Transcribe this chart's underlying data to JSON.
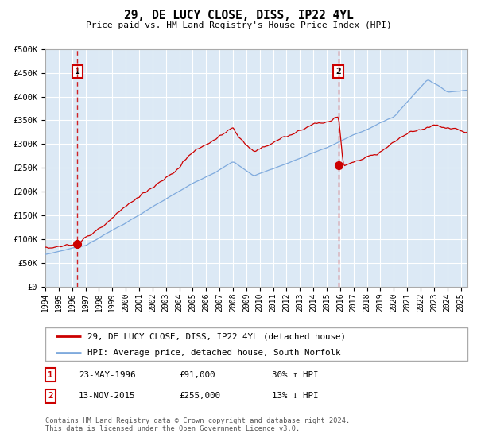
{
  "title": "29, DE LUCY CLOSE, DISS, IP22 4YL",
  "subtitle": "Price paid vs. HM Land Registry's House Price Index (HPI)",
  "ylim": [
    0,
    500000
  ],
  "xlim_start": 1994.0,
  "xlim_end": 2025.5,
  "yticks": [
    0,
    50000,
    100000,
    150000,
    200000,
    250000,
    300000,
    350000,
    400000,
    450000,
    500000
  ],
  "ytick_labels": [
    "£0",
    "£50K",
    "£100K",
    "£150K",
    "£200K",
    "£250K",
    "£300K",
    "£350K",
    "£400K",
    "£450K",
    "£500K"
  ],
  "xtick_years": [
    1994,
    1995,
    1996,
    1997,
    1998,
    1999,
    2000,
    2001,
    2002,
    2003,
    2004,
    2005,
    2006,
    2007,
    2008,
    2009,
    2010,
    2011,
    2012,
    2013,
    2014,
    2015,
    2016,
    2017,
    2018,
    2019,
    2020,
    2021,
    2022,
    2023,
    2024,
    2025
  ],
  "bg_color": "#dce9f5",
  "grid_color": "#ffffff",
  "red_line_color": "#cc0000",
  "blue_line_color": "#7faadd",
  "sale1_x": 1996.39,
  "sale1_y": 91000,
  "sale2_x": 2015.87,
  "sale2_y": 255000,
  "legend_label_red": "29, DE LUCY CLOSE, DISS, IP22 4YL (detached house)",
  "legend_label_blue": "HPI: Average price, detached house, South Norfolk",
  "table_row1_num": "1",
  "table_row1_date": "23-MAY-1996",
  "table_row1_price": "£91,000",
  "table_row1_hpi": "30% ↑ HPI",
  "table_row2_num": "2",
  "table_row2_date": "13-NOV-2015",
  "table_row2_price": "£255,000",
  "table_row2_hpi": "13% ↓ HPI",
  "footer_text": "Contains HM Land Registry data © Crown copyright and database right 2024.\nThis data is licensed under the Open Government Licence v3.0.",
  "marker_color": "#cc0000",
  "marker_size": 7
}
